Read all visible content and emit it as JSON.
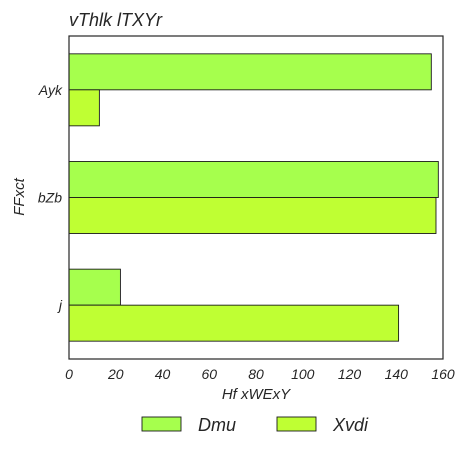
{
  "chart_data": {
    "type": "bar",
    "orientation": "horizontal",
    "title": "vThlk lTXYr",
    "xlabel": "Hf xWExY",
    "ylabel": "FFxct",
    "categories": [
      "Ayk",
      "bZb",
      "j"
    ],
    "series": [
      {
        "name": "Dmu",
        "color": "#a6ff4d",
        "values": [
          155,
          158,
          22
        ]
      },
      {
        "name": "Xvdi",
        "color": "#bfff33",
        "values": [
          13,
          157,
          141
        ]
      }
    ],
    "xlim": [
      0,
      160
    ],
    "xticks": [
      "0",
      "20",
      "40",
      "60",
      "80",
      "100",
      "120",
      "140",
      "160"
    ],
    "grid": false,
    "legend_position": "bottom-center"
  }
}
